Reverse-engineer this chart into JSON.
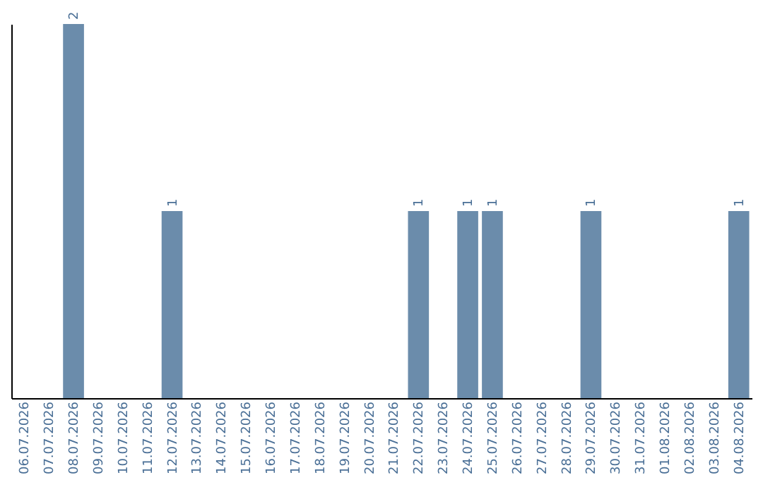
{
  "chart_data": {
    "type": "bar",
    "categories": [
      "06.07.2026",
      "07.07.2026",
      "08.07.2026",
      "09.07.2026",
      "10.07.2026",
      "11.07.2026",
      "12.07.2026",
      "13.07.2026",
      "14.07.2026",
      "15.07.2026",
      "16.07.2026",
      "17.07.2026",
      "18.07.2026",
      "19.07.2026",
      "20.07.2026",
      "21.07.2026",
      "22.07.2026",
      "23.07.2026",
      "24.07.2026",
      "25.07.2026",
      "26.07.2026",
      "27.07.2026",
      "28.07.2026",
      "29.07.2026",
      "30.07.2026",
      "31.07.2026",
      "01.08.2026",
      "02.08.2026",
      "03.08.2026",
      "04.08.2026"
    ],
    "values": [
      0,
      0,
      2,
      0,
      0,
      0,
      1,
      0,
      0,
      0,
      0,
      0,
      0,
      0,
      0,
      0,
      1,
      0,
      1,
      1,
      0,
      0,
      0,
      1,
      0,
      0,
      0,
      0,
      0,
      1
    ],
    "value_labels": [
      null,
      null,
      "2",
      null,
      null,
      null,
      "1",
      null,
      null,
      null,
      null,
      null,
      null,
      null,
      null,
      null,
      "1",
      null,
      "1",
      "1",
      null,
      null,
      null,
      "1",
      null,
      null,
      null,
      null,
      null,
      "1"
    ],
    "color": "#6b8cab",
    "grid": false,
    "tick_labels": "x"
  }
}
